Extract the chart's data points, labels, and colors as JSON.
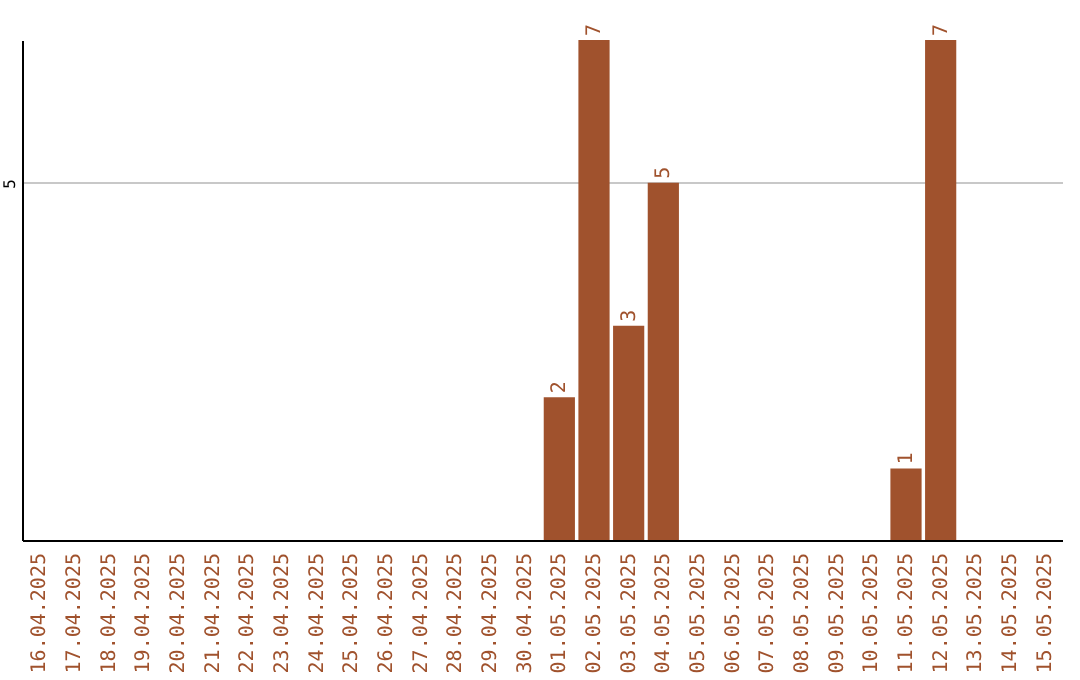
{
  "chart_data": {
    "type": "bar",
    "categories": [
      "16.04.2025",
      "17.04.2025",
      "18.04.2025",
      "19.04.2025",
      "20.04.2025",
      "21.04.2025",
      "22.04.2025",
      "23.04.2025",
      "24.04.2025",
      "25.04.2025",
      "26.04.2025",
      "27.04.2025",
      "28.04.2025",
      "29.04.2025",
      "30.04.2025",
      "01.05.2025",
      "02.05.2025",
      "03.05.2025",
      "04.05.2025",
      "05.05.2025",
      "06.05.2025",
      "07.05.2025",
      "08.05.2025",
      "09.05.2025",
      "10.05.2025",
      "11.05.2025",
      "12.05.2025",
      "13.05.2025",
      "14.05.2025",
      "15.05.2025"
    ],
    "values": [
      null,
      null,
      null,
      null,
      null,
      null,
      null,
      null,
      null,
      null,
      null,
      null,
      null,
      null,
      null,
      2,
      7,
      3,
      5,
      null,
      null,
      null,
      null,
      null,
      null,
      1,
      7,
      null,
      null,
      null
    ],
    "color": "#a0522d",
    "ylim": [
      0,
      7
    ],
    "yticks": [
      5
    ],
    "grid": "y",
    "data_labels": true
  }
}
